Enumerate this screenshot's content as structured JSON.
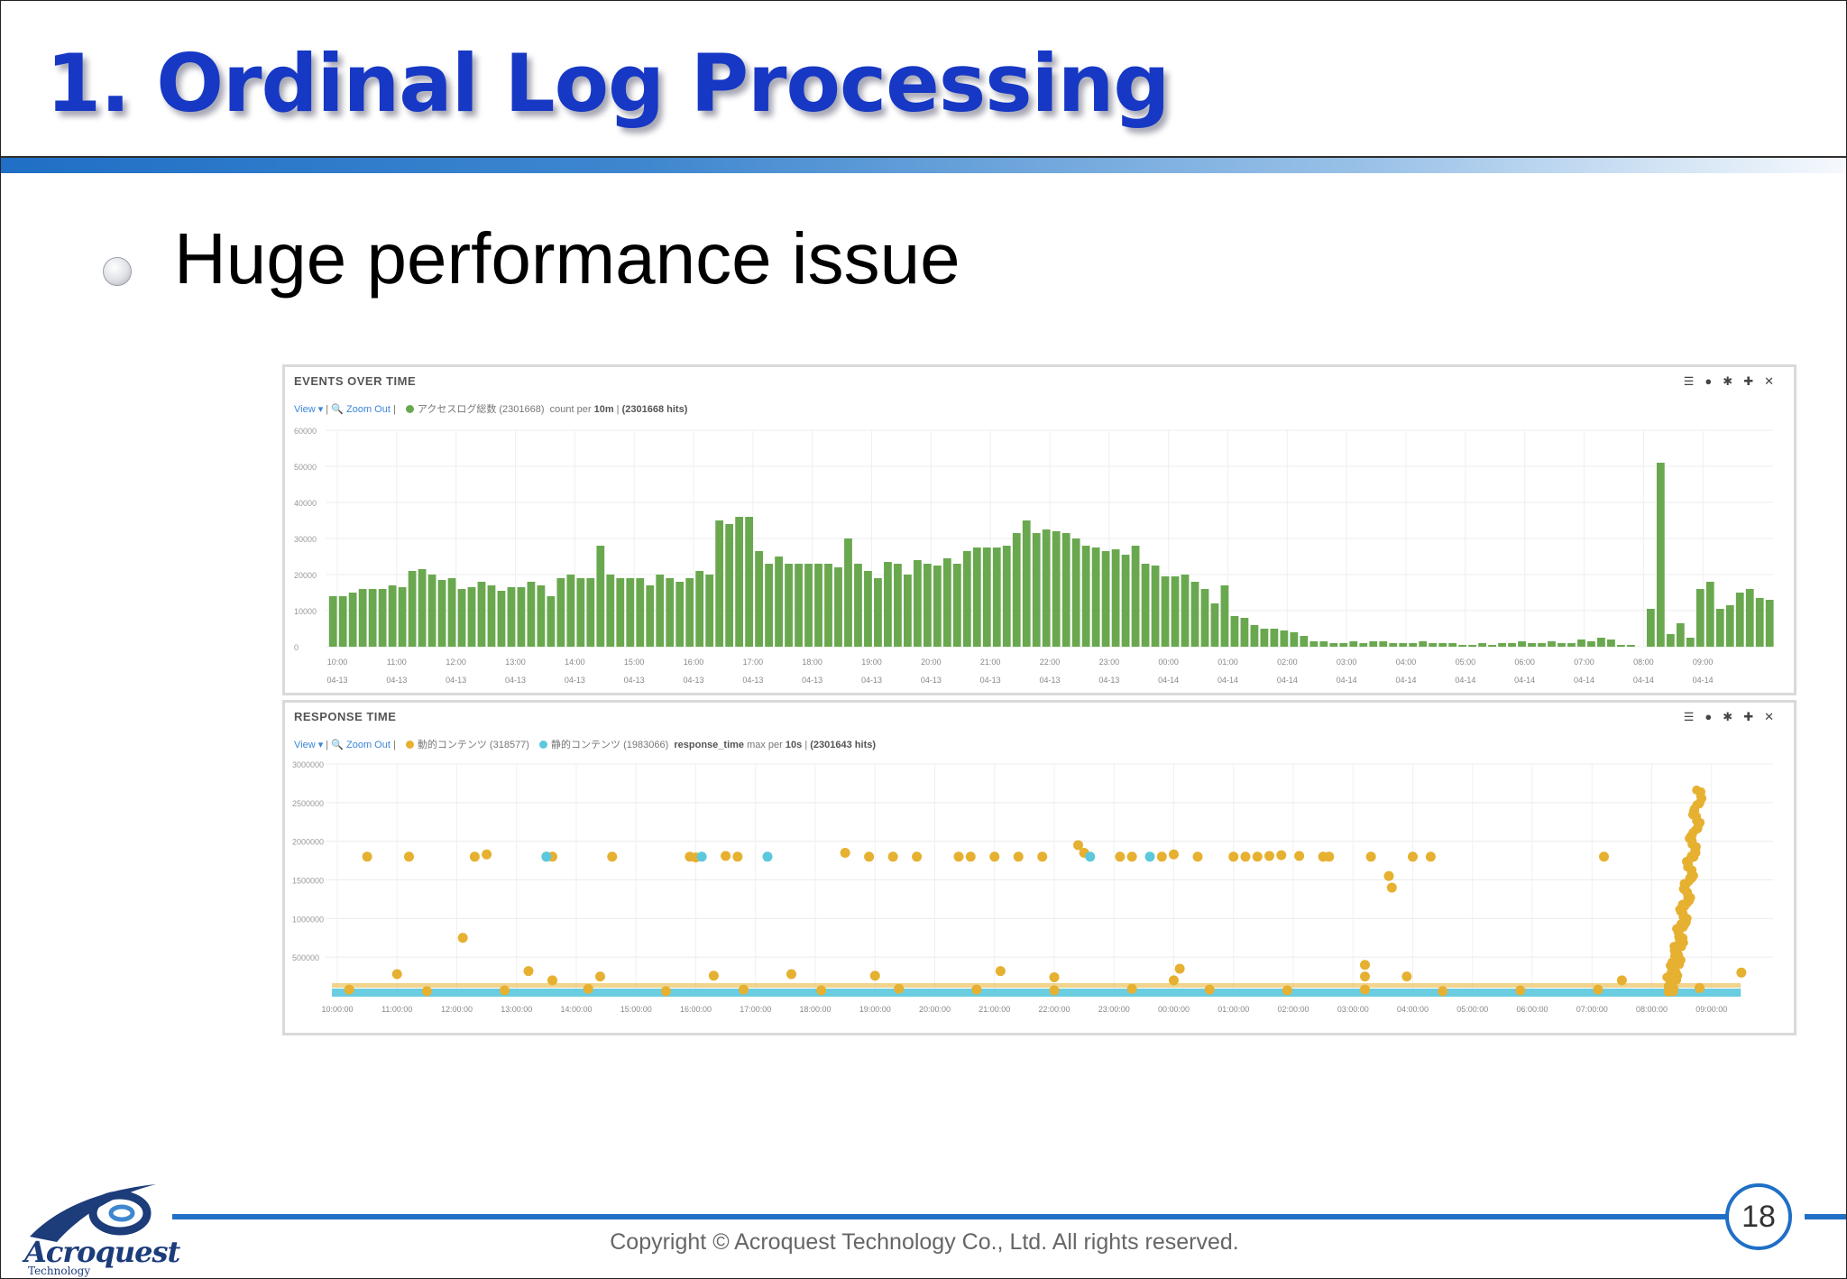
{
  "slide": {
    "title": "1. Ordinal Log Processing",
    "bullet": "Huge performance issue",
    "page_number": "18",
    "copyright": "Copyright © Acroquest Technology Co., Ltd. All rights reserved.",
    "logo_name": "Acroquest",
    "logo_sub": "Technology"
  },
  "colors": {
    "title": "#1638c4",
    "accent_rule": "#1f6fc6",
    "bar_green": "#6aa84f",
    "dot_orange": "#e6b030",
    "dot_cyan": "#5bc8dd"
  },
  "chart_data": [
    {
      "type": "bar",
      "title": "EVENTS OVER TIME",
      "controls": {
        "view": "View ▾",
        "zoom_out": "Zoom Out"
      },
      "legend_entries": [
        {
          "label": "アクセスログ総数 (2301668)",
          "color": "#6aa84f"
        }
      ],
      "query_info_prefix": "count per",
      "query_info_interval": "10m",
      "query_info_hits": "(2301668 hits)",
      "ylim": [
        0,
        60000
      ],
      "y_ticks": [
        "0",
        "10000",
        "20000",
        "30000",
        "40000",
        "50000",
        "60000"
      ],
      "x_ticks": [
        {
          "time": "10:00",
          "date": "04-13"
        },
        {
          "time": "11:00",
          "date": "04-13"
        },
        {
          "time": "12:00",
          "date": "04-13"
        },
        {
          "time": "13:00",
          "date": "04-13"
        },
        {
          "time": "14:00",
          "date": "04-13"
        },
        {
          "time": "15:00",
          "date": "04-13"
        },
        {
          "time": "16:00",
          "date": "04-13"
        },
        {
          "time": "17:00",
          "date": "04-13"
        },
        {
          "time": "18:00",
          "date": "04-13"
        },
        {
          "time": "19:00",
          "date": "04-13"
        },
        {
          "time": "20:00",
          "date": "04-13"
        },
        {
          "time": "21:00",
          "date": "04-13"
        },
        {
          "time": "22:00",
          "date": "04-13"
        },
        {
          "time": "23:00",
          "date": "04-13"
        },
        {
          "time": "00:00",
          "date": "04-14"
        },
        {
          "time": "01:00",
          "date": "04-14"
        },
        {
          "time": "02:00",
          "date": "04-14"
        },
        {
          "time": "03:00",
          "date": "04-14"
        },
        {
          "time": "04:00",
          "date": "04-14"
        },
        {
          "time": "05:00",
          "date": "04-14"
        },
        {
          "time": "06:00",
          "date": "04-14"
        },
        {
          "time": "07:00",
          "date": "04-14"
        },
        {
          "time": "08:00",
          "date": "04-14"
        },
        {
          "time": "09:00",
          "date": "04-14"
        }
      ],
      "values": [
        14000,
        14000,
        15000,
        16000,
        16000,
        16000,
        17000,
        16500,
        21000,
        21500,
        20000,
        18500,
        19000,
        16000,
        16500,
        18000,
        17000,
        15500,
        16500,
        16500,
        18000,
        17000,
        14000,
        19000,
        20000,
        19000,
        19000,
        28000,
        20000,
        19000,
        19000,
        19000,
        17000,
        20000,
        19000,
        18000,
        19000,
        21000,
        20000,
        35000,
        34000,
        36000,
        36000,
        26500,
        23000,
        25000,
        23000,
        23000,
        23000,
        23000,
        23000,
        22000,
        30000,
        23000,
        21000,
        19000,
        23500,
        23000,
        20000,
        24000,
        23000,
        22500,
        24500,
        23000,
        26500,
        27500,
        27500,
        27500,
        28000,
        31500,
        35000,
        31500,
        32500,
        32000,
        31500,
        30000,
        28000,
        27500,
        26500,
        27000,
        25500,
        28000,
        23000,
        22500,
        19500,
        19500,
        20000,
        18000,
        16000,
        12000,
        17000,
        8500,
        8000,
        6000,
        5000,
        5000,
        4500,
        4000,
        3000,
        1500,
        1500,
        1000,
        1000,
        1500,
        1000,
        1500,
        1500,
        1000,
        1000,
        1000,
        1500,
        1000,
        1000,
        1000,
        500,
        500,
        1000,
        500,
        1000,
        1000,
        1500,
        1000,
        1000,
        1500,
        1000,
        1000,
        2000,
        1500,
        2500,
        2000,
        500,
        500,
        0,
        10500,
        51000,
        3500,
        6500,
        2500,
        16000,
        18000,
        10500,
        11500,
        15000,
        16000,
        13500,
        13000
      ]
    },
    {
      "type": "scatter",
      "title": "RESPONSE TIME",
      "controls": {
        "view": "View ▾",
        "zoom_out": "Zoom Out"
      },
      "legend_entries": [
        {
          "label": "動的コンテンツ (318577)",
          "color": "#e6b030"
        },
        {
          "label": "静的コンテンツ (1983066)",
          "color": "#5bc8dd"
        }
      ],
      "query_field": "response_time",
      "query_info_prefix": "max per",
      "query_info_interval": "10s",
      "query_info_hits": "(2301643 hits)",
      "ylim": [
        0,
        3000000
      ],
      "y_ticks": [
        "500000",
        "1000000",
        "1500000",
        "2000000",
        "2500000",
        "3000000"
      ],
      "x_ticks": [
        "10:00:00",
        "11:00:00",
        "12:00:00",
        "13:00:00",
        "14:00:00",
        "15:00:00",
        "16:00:00",
        "17:00:00",
        "18:00:00",
        "19:00:00",
        "20:00:00",
        "21:00:00",
        "22:00:00",
        "23:00:00",
        "00:00:00",
        "01:00:00",
        "02:00:00",
        "03:00:00",
        "04:00:00",
        "05:00:00",
        "06:00:00",
        "07:00:00",
        "08:00:00",
        "09:00:00"
      ],
      "series": [
        {
          "name": "動的コンテンツ (318577)",
          "points": [
            [
              0.5,
              1800000
            ],
            [
              1.2,
              1800000
            ],
            [
              2.3,
              1800000
            ],
            [
              2.5,
              1830000
            ],
            [
              2.1,
              750000
            ],
            [
              3.5,
              1800000
            ],
            [
              3.6,
              1800000
            ],
            [
              4.6,
              1800000
            ],
            [
              5.9,
              1800000
            ],
            [
              6.0,
              1790000
            ],
            [
              6.5,
              1810000
            ],
            [
              6.7,
              1800000
            ],
            [
              8.5,
              1850000
            ],
            [
              8.9,
              1800000
            ],
            [
              9.3,
              1800000
            ],
            [
              9.7,
              1800000
            ],
            [
              10.4,
              1800000
            ],
            [
              10.6,
              1800000
            ],
            [
              11.0,
              1800000
            ],
            [
              11.4,
              1800000
            ],
            [
              11.8,
              1800000
            ],
            [
              12.4,
              1950000
            ],
            [
              12.5,
              1850000
            ],
            [
              13.1,
              1800000
            ],
            [
              13.3,
              1800000
            ],
            [
              13.8,
              1800000
            ],
            [
              14.0,
              1830000
            ],
            [
              14.4,
              1800000
            ],
            [
              15.0,
              1800000
            ],
            [
              15.2,
              1800000
            ],
            [
              15.4,
              1800000
            ],
            [
              15.6,
              1810000
            ],
            [
              15.8,
              1820000
            ],
            [
              16.1,
              1810000
            ],
            [
              16.5,
              1800000
            ],
            [
              16.6,
              1800000
            ],
            [
              17.3,
              1800000
            ],
            [
              17.6,
              1550000
            ],
            [
              17.65,
              1400000
            ],
            [
              18.0,
              1800000
            ],
            [
              18.3,
              1800000
            ],
            [
              21.2,
              1800000
            ],
            [
              22.7,
              1800000
            ],
            [
              1.0,
              280000
            ],
            [
              3.2,
              320000
            ],
            [
              3.6,
              200000
            ],
            [
              4.4,
              250000
            ],
            [
              6.3,
              260000
            ],
            [
              7.6,
              280000
            ],
            [
              9.0,
              260000
            ],
            [
              11.1,
              320000
            ],
            [
              12.0,
              240000
            ],
            [
              14.1,
              350000
            ],
            [
              14.0,
              200000
            ],
            [
              17.2,
              400000
            ],
            [
              17.2,
              250000
            ],
            [
              17.9,
              250000
            ],
            [
              21.5,
              200000
            ],
            [
              22.4,
              300000
            ],
            [
              23.5,
              300000
            ],
            [
              0.2,
              80000
            ],
            [
              1.5,
              60000
            ],
            [
              2.8,
              70000
            ],
            [
              4.2,
              90000
            ],
            [
              5.5,
              60000
            ],
            [
              6.8,
              80000
            ],
            [
              8.1,
              70000
            ],
            [
              9.4,
              90000
            ],
            [
              10.7,
              80000
            ],
            [
              12.0,
              70000
            ],
            [
              13.3,
              90000
            ],
            [
              14.6,
              80000
            ],
            [
              15.9,
              70000
            ],
            [
              17.2,
              80000
            ],
            [
              18.5,
              60000
            ],
            [
              19.8,
              70000
            ],
            [
              21.1,
              80000
            ],
            [
              22.8,
              100000
            ]
          ]
        },
        {
          "name": "静的コンテンツ (1983066)",
          "points": [
            [
              3.5,
              1800000
            ],
            [
              6.1,
              1800000
            ],
            [
              7.2,
              1800000
            ],
            [
              12.6,
              1800000
            ],
            [
              13.6,
              1800000
            ]
          ]
        }
      ]
    }
  ]
}
